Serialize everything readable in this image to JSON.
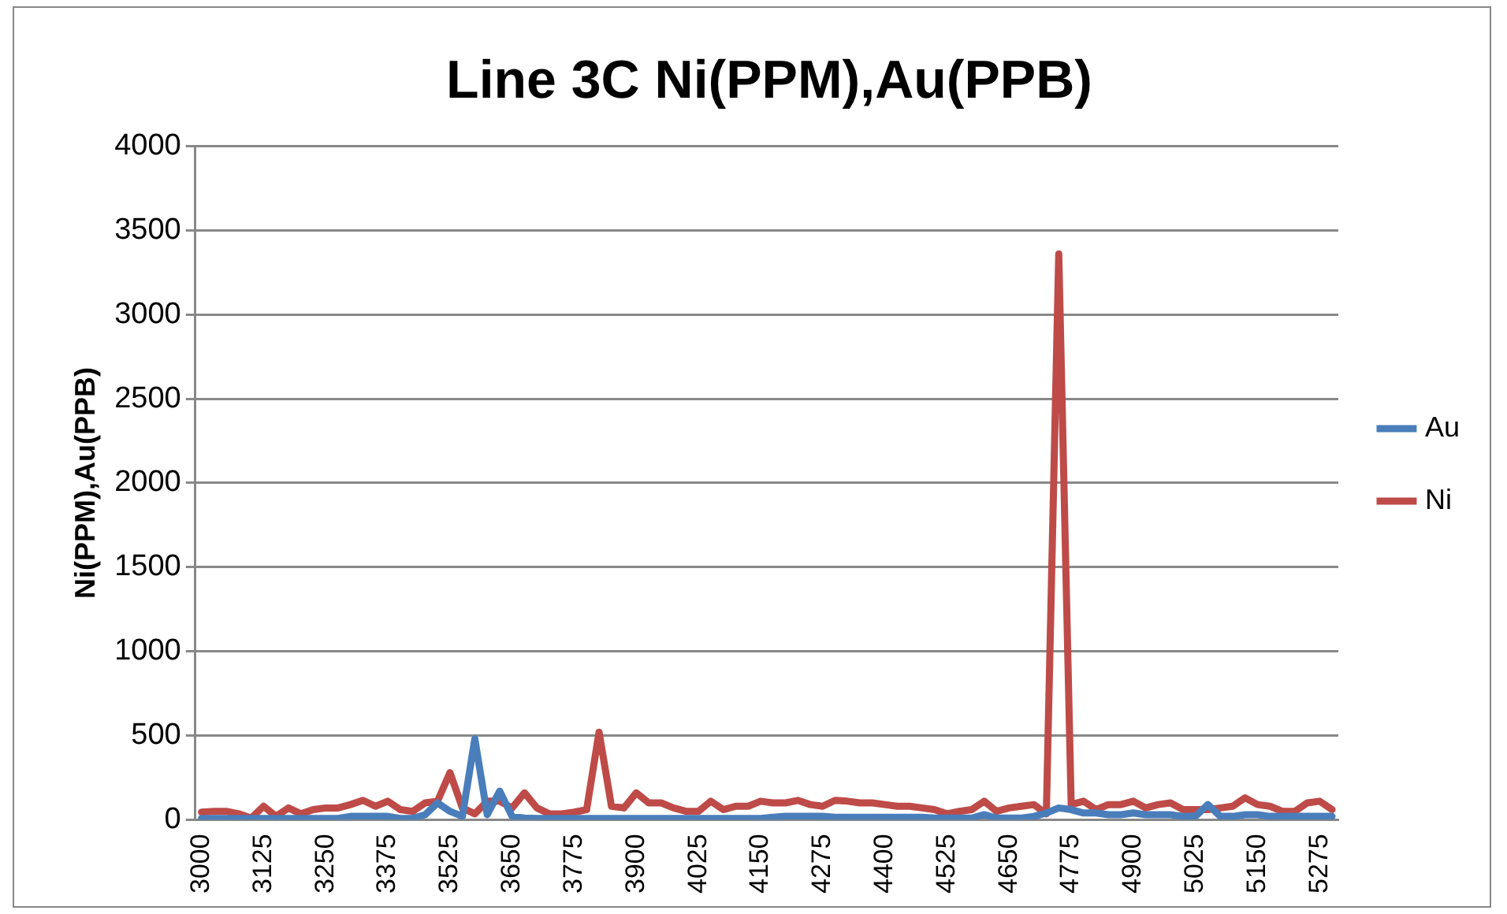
{
  "chart_data": {
    "type": "line",
    "title": "Line 3C Ni(PPM),Au(PPB)",
    "ylabel": "Ni(PPM),Au(PPB)",
    "categories": [
      "3000",
      null,
      null,
      null,
      null,
      "3125",
      null,
      null,
      null,
      null,
      "3250",
      null,
      null,
      null,
      null,
      "3375",
      null,
      null,
      null,
      null,
      "3525",
      null,
      null,
      null,
      null,
      "3650",
      null,
      null,
      null,
      null,
      "3775",
      null,
      null,
      null,
      null,
      "3900",
      null,
      null,
      null,
      null,
      "4025",
      null,
      null,
      null,
      null,
      "4150",
      null,
      null,
      null,
      null,
      "4275",
      null,
      null,
      null,
      null,
      "4400",
      null,
      null,
      null,
      null,
      "4525",
      null,
      null,
      null,
      null,
      "4650",
      null,
      null,
      null,
      null,
      "4775",
      null,
      null,
      null,
      null,
      "4900",
      null,
      null,
      null,
      null,
      "5025",
      null,
      null,
      null,
      null,
      "5150",
      null,
      null,
      null,
      null,
      "5275",
      null
    ],
    "series": [
      {
        "name": "Au",
        "color": "#4a7ebb",
        "values": [
          8,
          8,
          8,
          8,
          8,
          8,
          8,
          8,
          8,
          8,
          8,
          8,
          20,
          20,
          20,
          20,
          8,
          8,
          30,
          100,
          50,
          20,
          480,
          30,
          170,
          20,
          10,
          8,
          8,
          8,
          8,
          8,
          8,
          8,
          8,
          8,
          8,
          8,
          8,
          8,
          8,
          8,
          8,
          8,
          8,
          8,
          15,
          20,
          20,
          20,
          20,
          15,
          15,
          15,
          15,
          15,
          15,
          15,
          15,
          10,
          10,
          10,
          10,
          30,
          10,
          10,
          10,
          20,
          40,
          70,
          60,
          40,
          40,
          30,
          30,
          40,
          30,
          30,
          30,
          20,
          20,
          90,
          20,
          20,
          30,
          30,
          20,
          20,
          20,
          20,
          20,
          20
        ]
      },
      {
        "name": "Ni",
        "color": "#be4b48",
        "values": [
          45,
          50,
          50,
          35,
          10,
          80,
          20,
          70,
          35,
          60,
          70,
          70,
          90,
          115,
          80,
          110,
          60,
          50,
          100,
          110,
          280,
          70,
          35,
          110,
          110,
          70,
          160,
          70,
          35,
          35,
          45,
          60,
          520,
          80,
          70,
          160,
          100,
          100,
          70,
          50,
          50,
          110,
          60,
          80,
          80,
          110,
          100,
          100,
          115,
          90,
          80,
          115,
          110,
          100,
          100,
          90,
          80,
          80,
          70,
          60,
          35,
          50,
          60,
          110,
          50,
          70,
          80,
          90,
          35,
          3360,
          90,
          110,
          60,
          90,
          90,
          110,
          70,
          90,
          100,
          60,
          60,
          60,
          70,
          80,
          130,
          90,
          80,
          50,
          50,
          100,
          110,
          60
        ]
      }
    ],
    "ylim": [
      0,
      4000
    ],
    "yticks": [
      0,
      500,
      1000,
      1500,
      2000,
      2500,
      3000,
      3500,
      4000
    ],
    "grid": "y",
    "legend": "right",
    "marker": "none",
    "line_style": "solid"
  }
}
